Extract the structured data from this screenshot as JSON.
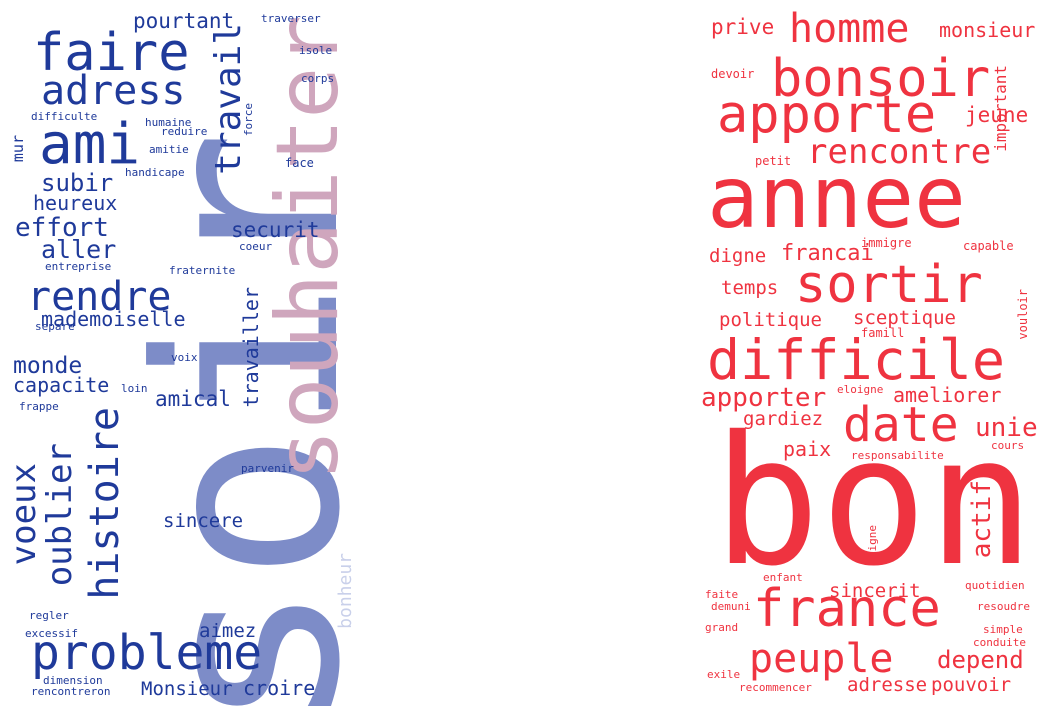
{
  "colors": {
    "navy": "#1f3a9a",
    "periwinkle": "#7d8cc8",
    "mauve": "#cfa6bd",
    "pale_blue": "#c9d0ea",
    "red": "#ef3340"
  },
  "left_cloud": {
    "words": [
      "soir",
      "souhaiter",
      "faire",
      "ami",
      "probleme",
      "travail",
      "adress",
      "histoire",
      "oublier",
      "voeux",
      "rendre",
      "pourtant",
      "monde",
      "effort",
      "aller",
      "subir",
      "heureux",
      "securit",
      "mademoiselle",
      "capacite",
      "amical",
      "travailler",
      "sincere",
      "aimez",
      "croire",
      "Monsieur",
      "bonheur",
      "mur",
      "humaine",
      "reduire",
      "amitie",
      "force",
      "difficulte",
      "traverser",
      "isole",
      "corps",
      "face",
      "handicape",
      "coeur",
      "fraternite",
      "entreprise",
      "separe",
      "voix",
      "loin",
      "frappe",
      "parvenir",
      "regler",
      "excessif",
      "dimension",
      "rencontreron"
    ]
  },
  "right_cloud": {
    "words": [
      "bon",
      "annee",
      "difficile",
      "france",
      "bonsoir",
      "apporte",
      "sortir",
      "homme",
      "rencontre",
      "date",
      "peuple",
      "prive",
      "monsieur",
      "devoir",
      "important",
      "jeune",
      "petit",
      "digne",
      "francai",
      "immigre",
      "capable",
      "temps",
      "politique",
      "sceptique",
      "famill",
      "vouloir",
      "apporter",
      "eloigne",
      "ameliorer",
      "gardiez",
      "unie",
      "paix",
      "responsabilite",
      "cours",
      "actif",
      "signe",
      "enfant",
      "sincerit",
      "quotidien",
      "faite",
      "demuni",
      "resoudre",
      "grand",
      "simple",
      "conduite",
      "depend",
      "exile",
      "recommencer",
      "adresse",
      "pouvoir"
    ]
  }
}
